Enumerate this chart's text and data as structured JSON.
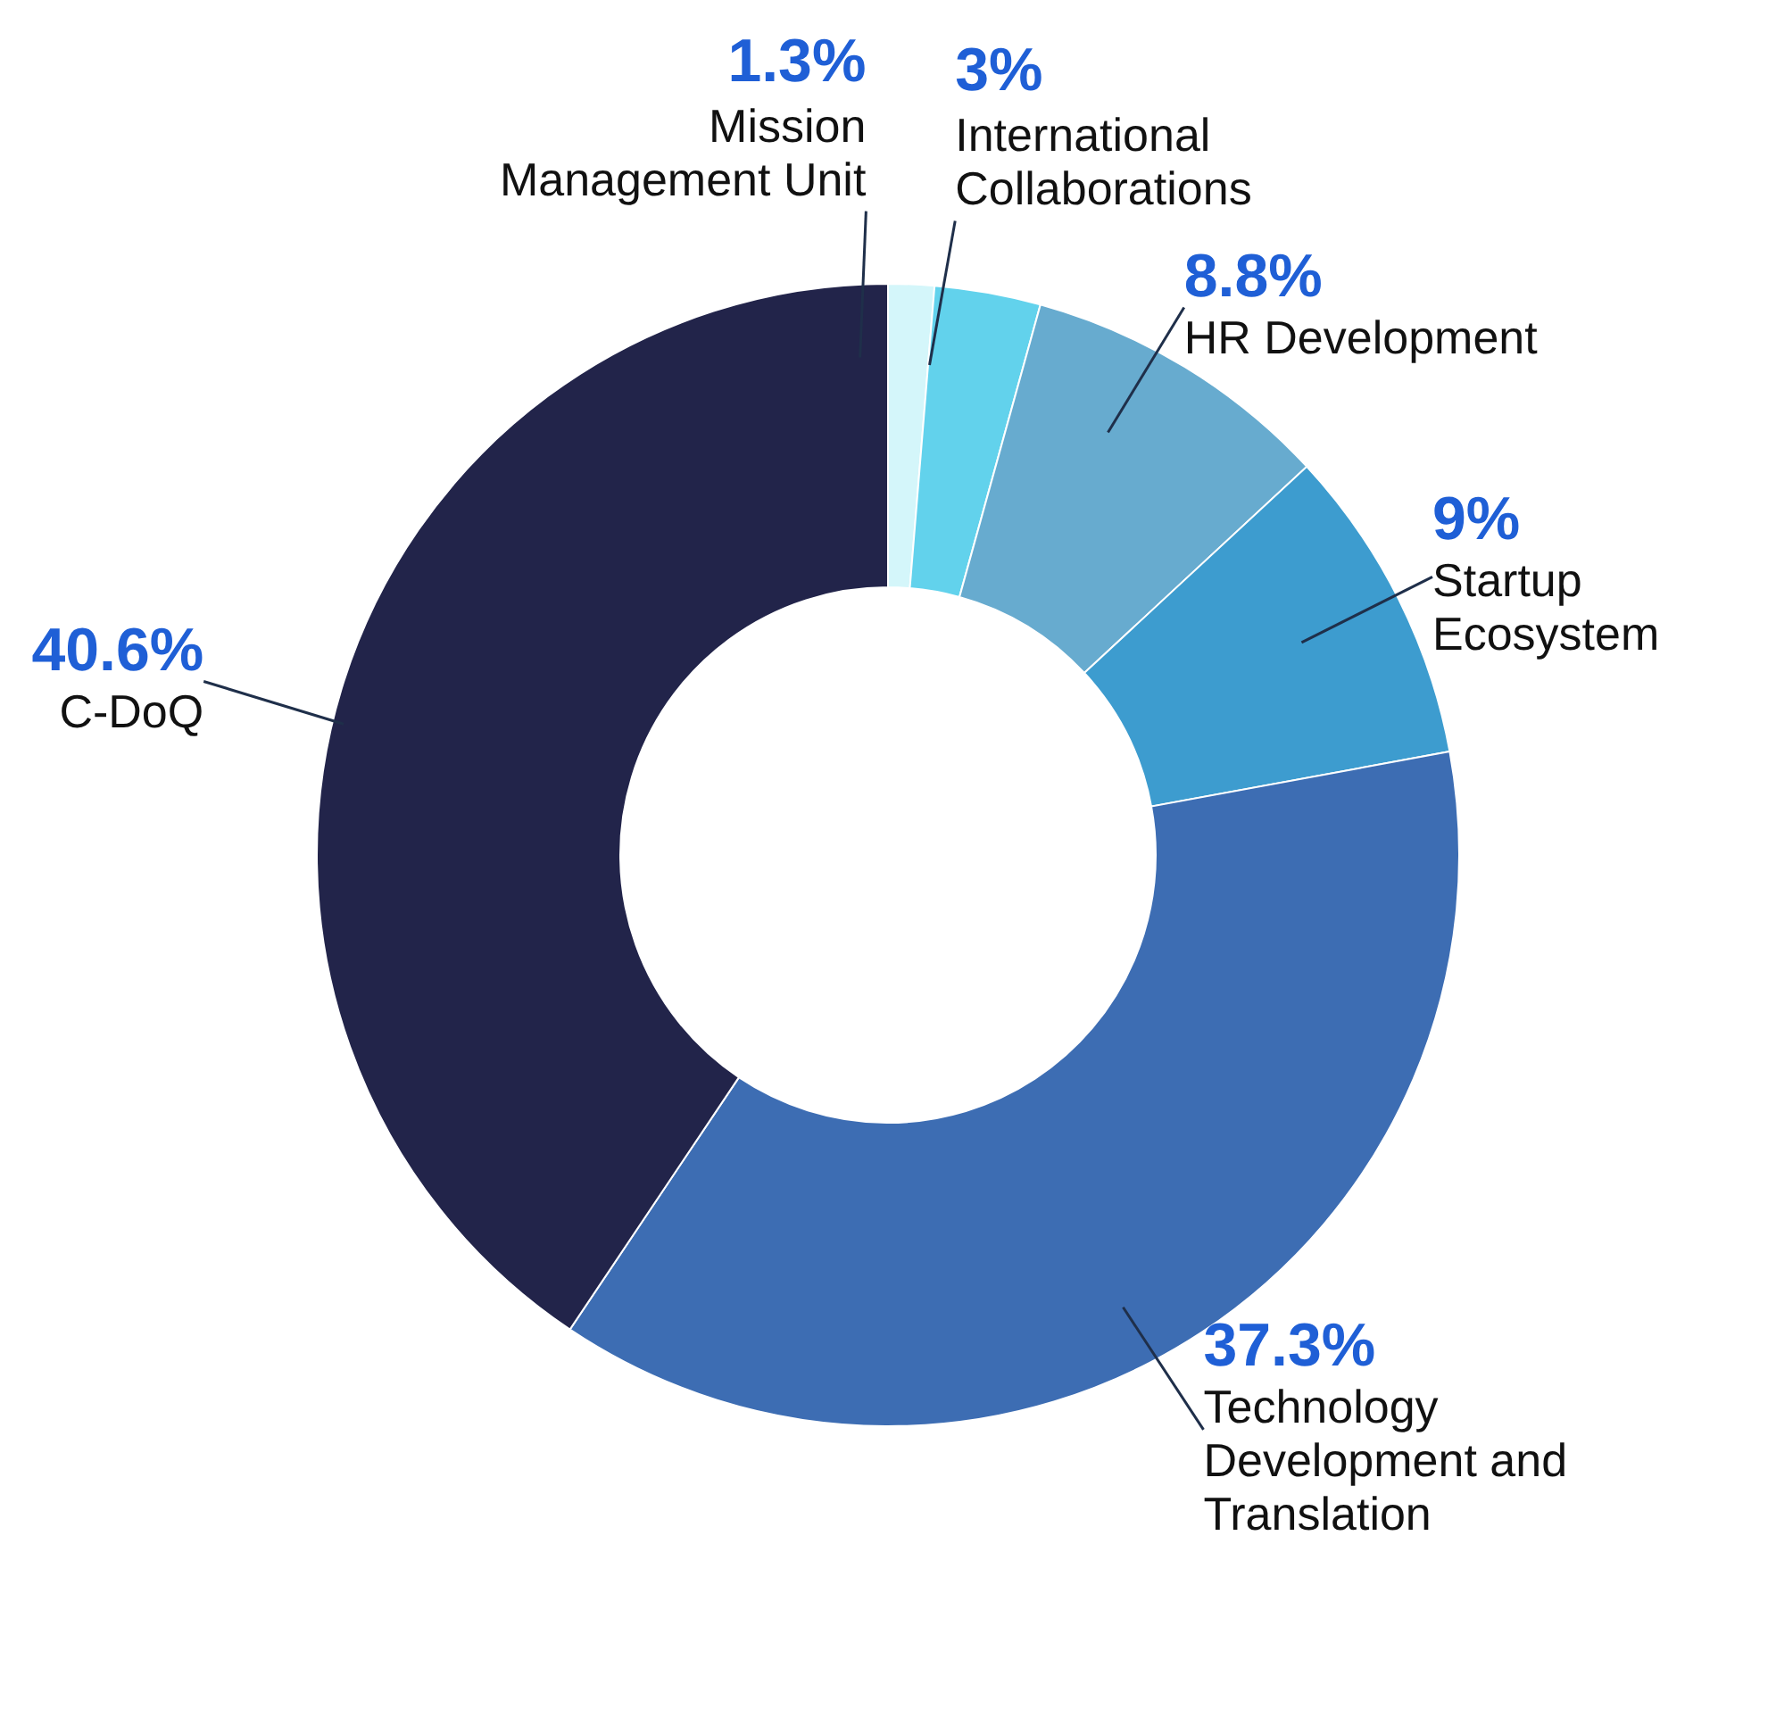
{
  "chart_data": {
    "type": "donut",
    "categories": [
      "Mission Management Unit",
      "International Collaborations",
      "HR Development",
      "Startup Ecosystem",
      "Technology Development and Translation",
      "C-DoQ"
    ],
    "values": [
      1.3,
      3,
      8.8,
      9,
      37.3,
      40.6
    ],
    "value_labels": [
      "1.3%",
      "3%",
      "8.8%",
      "9%",
      "37.3%",
      "40.6%"
    ],
    "colors": [
      "#d4f6fa",
      "#62d2ec",
      "#67abcf",
      "#3d9ccf",
      "#3d6db3",
      "#22244a"
    ],
    "legend": false
  }
}
